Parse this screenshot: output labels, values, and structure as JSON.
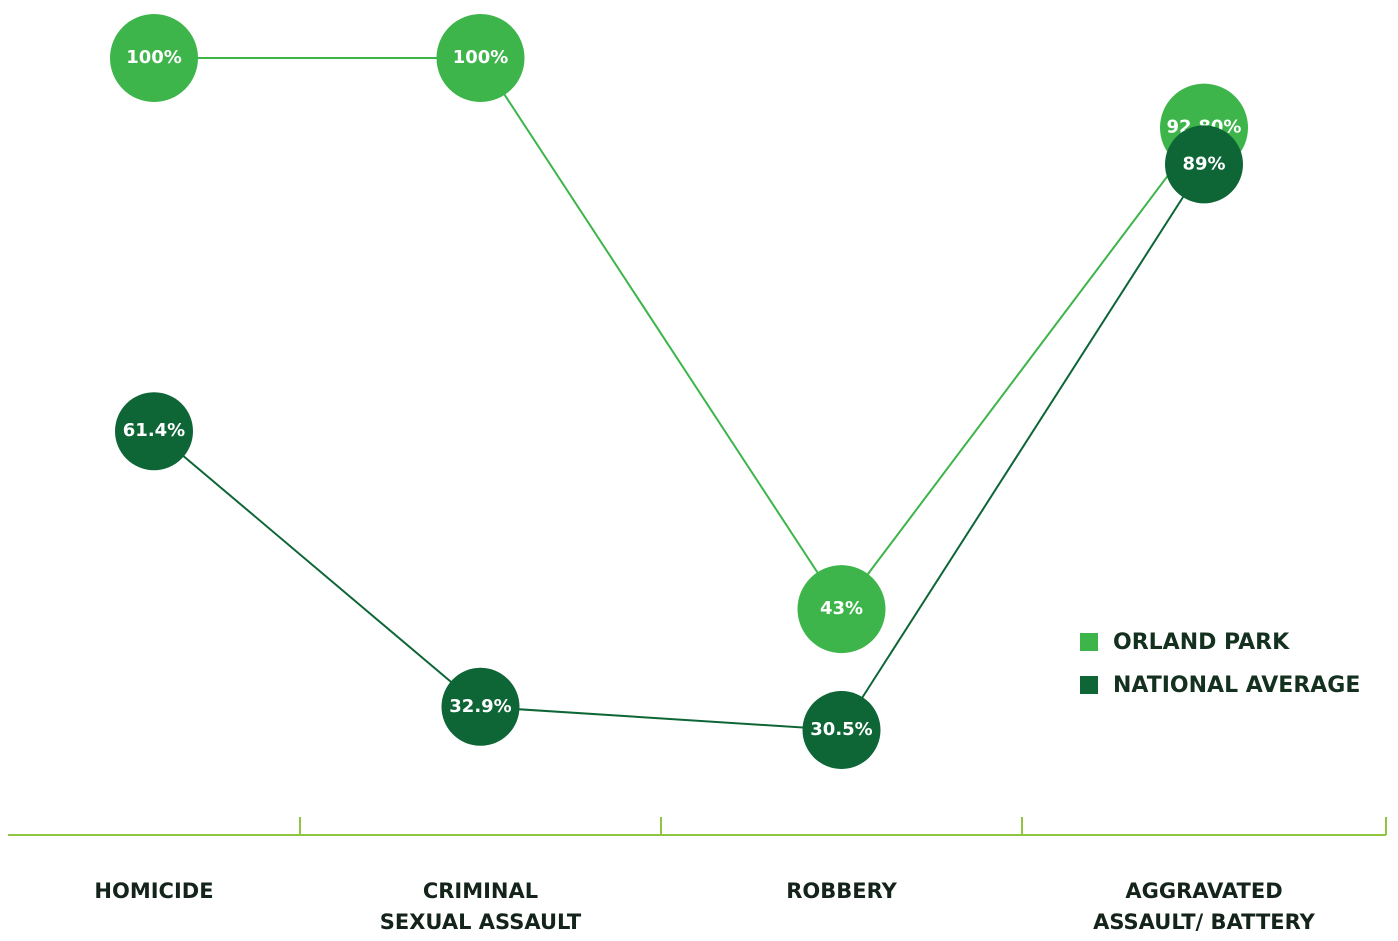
{
  "chart_data": {
    "type": "line",
    "categories": [
      "HOMICIDE",
      "CRIMINAL\nSEXUAL ASSAULT",
      "ROBBERY",
      "AGGRAVATED\nASSAULT/ BATTERY"
    ],
    "series": [
      {
        "name": "ORLAND PARK",
        "color": "#3db54a",
        "values": [
          100,
          100,
          43,
          92.8
        ],
        "value_labels": [
          "100%",
          "100%",
          "43%",
          "92.80%"
        ]
      },
      {
        "name": "NATIONAL AVERAGE",
        "color": "#0e6637",
        "values": [
          61.4,
          32.9,
          30.5,
          89
        ],
        "value_labels": [
          "61.4%",
          "32.9%",
          "30.5%",
          "89%"
        ]
      }
    ],
    "legend": "lower right"
  }
}
